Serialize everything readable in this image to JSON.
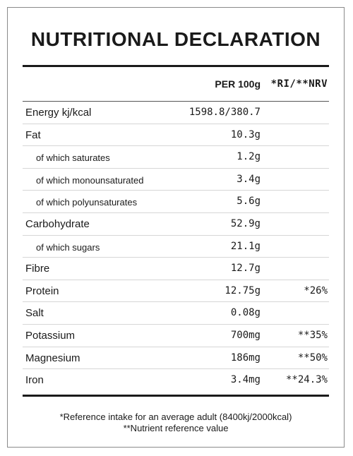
{
  "title": "NUTRITIONAL DECLARATION",
  "header": {
    "per100g": "PER 100g",
    "ri": "*RI/**NRV"
  },
  "rows": [
    {
      "name": "Energy kj/kcal",
      "value": "1598.8/380.7",
      "ri": "",
      "sub": false
    },
    {
      "name": "Fat",
      "value": "10.3g",
      "ri": "",
      "sub": false
    },
    {
      "name": "of which saturates",
      "value": "1.2g",
      "ri": "",
      "sub": true
    },
    {
      "name": "of which monounsaturated",
      "value": "3.4g",
      "ri": "",
      "sub": true
    },
    {
      "name": "of which polyunsaturates",
      "value": "5.6g",
      "ri": "",
      "sub": true
    },
    {
      "name": "Carbohydrate",
      "value": "52.9g",
      "ri": "",
      "sub": false
    },
    {
      "name": "of which sugars",
      "value": "21.1g",
      "ri": "",
      "sub": true
    },
    {
      "name": "Fibre",
      "value": "12.7g",
      "ri": "",
      "sub": false
    },
    {
      "name": "Protein",
      "value": "12.75g",
      "ri": "*26%",
      "sub": false
    },
    {
      "name": "Salt",
      "value": "0.08g",
      "ri": "",
      "sub": false
    },
    {
      "name": "Potassium",
      "value": "700mg",
      "ri": "**35%",
      "sub": false
    },
    {
      "name": "Magnesium",
      "value": "186mg",
      "ri": "**50%",
      "sub": false
    },
    {
      "name": "Iron",
      "value": "3.4mg",
      "ri": "**24.3%",
      "sub": false
    }
  ],
  "footnotes": {
    "ri": "*Reference intake for an average adult (8400kj/2000kcal)",
    "nrv": "**Nutrient reference value"
  }
}
